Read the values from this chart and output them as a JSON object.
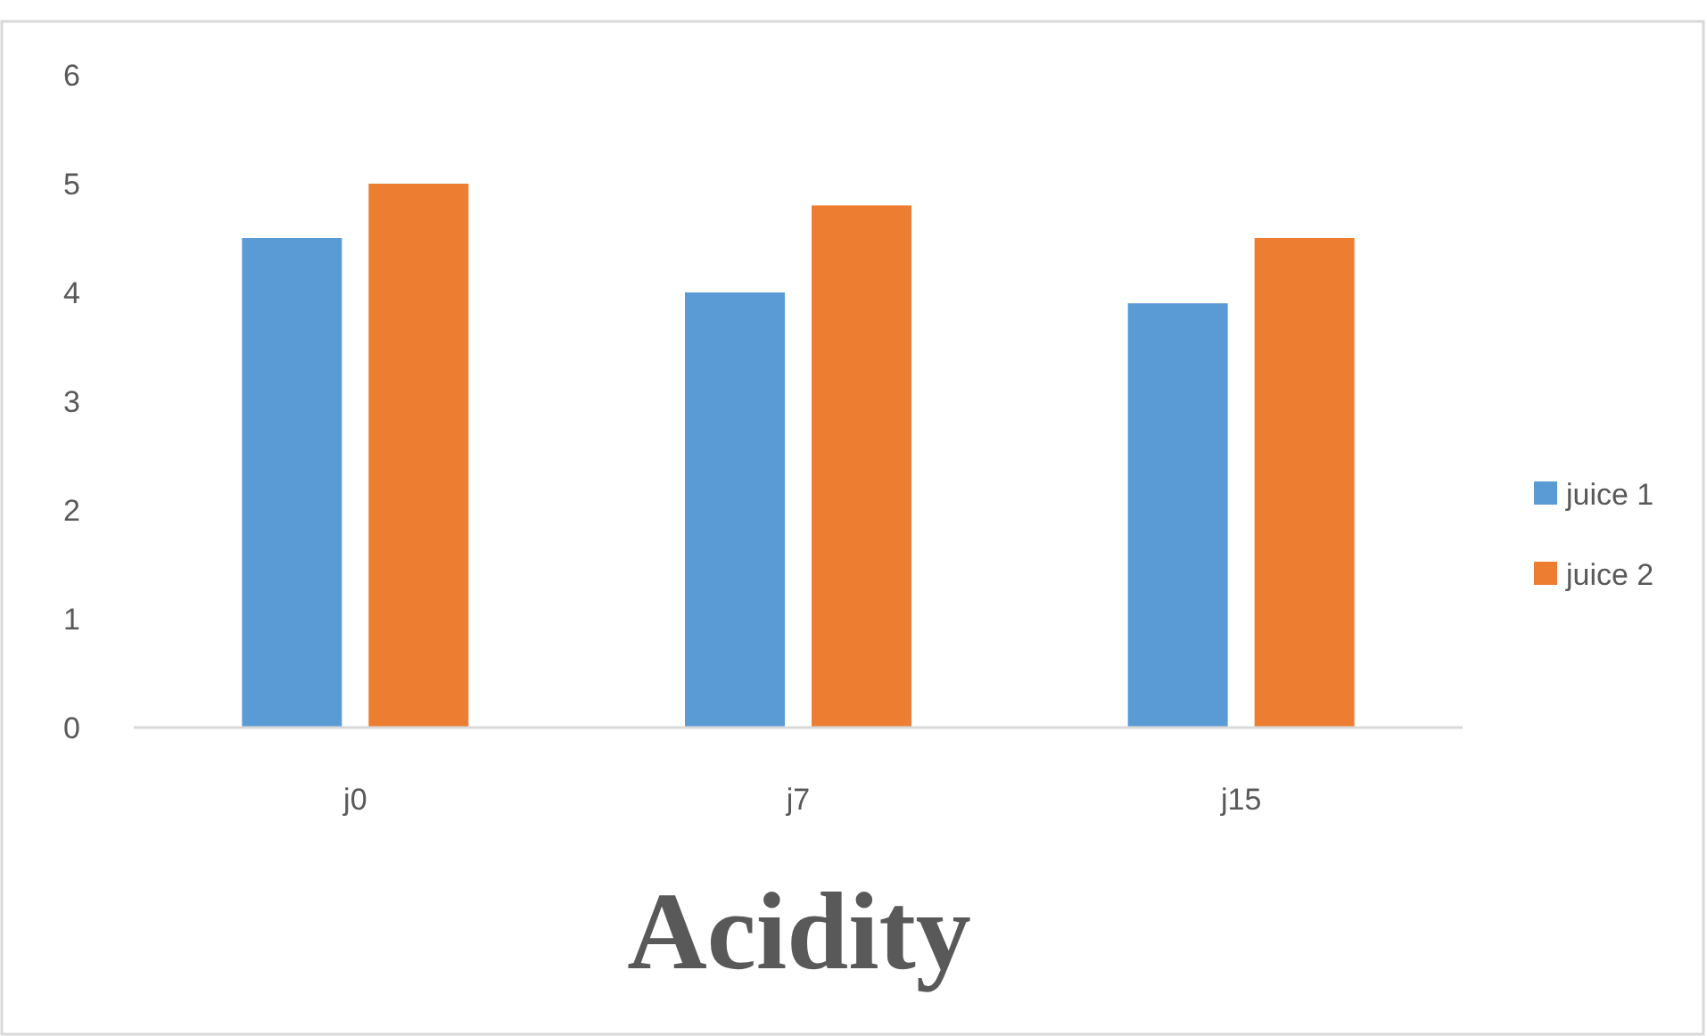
{
  "chart_data": {
    "type": "bar",
    "title": "Acidity",
    "categories": [
      "j0",
      "j7",
      "j15"
    ],
    "series": [
      {
        "name": "juice 1",
        "color": "#5b9bd5",
        "values": [
          4.5,
          4,
          3.9
        ]
      },
      {
        "name": "juice 2",
        "color": "#ed7d31",
        "values": [
          5,
          4.8,
          4.5
        ]
      }
    ],
    "ylim": [
      0,
      6
    ],
    "yticks": [
      0,
      1,
      2,
      3,
      4,
      5,
      6
    ],
    "grid": false,
    "legend": "right"
  }
}
